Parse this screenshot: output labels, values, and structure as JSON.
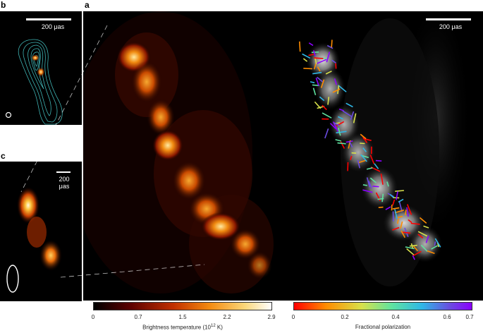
{
  "panels": {
    "b": {
      "label": "b",
      "scale_label": "200 μas"
    },
    "c": {
      "label": "c",
      "scale_label_line1": "200",
      "scale_label_line2": "μas"
    },
    "a": {
      "label": "a",
      "scale_label": "200 μas"
    }
  },
  "colorbars": {
    "brightness": {
      "ticks": [
        "0",
        "0.7",
        "1.5",
        "2.2",
        "2.9"
      ],
      "title": "Brightness temperature (10",
      "title_exp": "12",
      "title_end": " K)",
      "colors": [
        "#000000",
        "#5a0000",
        "#c23000",
        "#f38a10",
        "#fbd77a",
        "#ffffff"
      ]
    },
    "polarization": {
      "ticks": [
        "0",
        "0.2",
        "0.4",
        "0.6",
        "0.7"
      ],
      "title": "Fractional polarization",
      "colors": [
        "#ff0000",
        "#ff8c00",
        "#d8e14a",
        "#5fe3a0",
        "#2fb7e6",
        "#6a4be0",
        "#8b00ff"
      ]
    }
  }
}
